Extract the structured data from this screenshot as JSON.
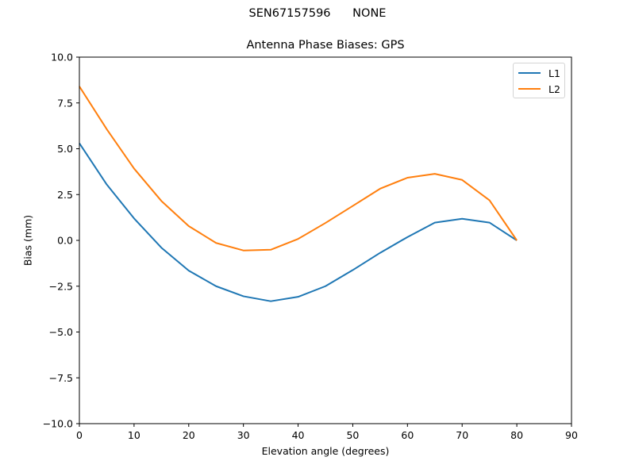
{
  "figure": {
    "suptitle": "SEN67157596      NONE",
    "title": "Antenna Phase Biases: GPS",
    "xlabel": "Elevation angle (degrees)",
    "ylabel": "Bias (mm)"
  },
  "legend": {
    "items": [
      {
        "label": "L1",
        "color": "#1f77b4"
      },
      {
        "label": "L2",
        "color": "#ff7f0e"
      }
    ]
  },
  "chart_data": {
    "type": "line",
    "title": "Antenna Phase Biases: GPS",
    "suptitle": "SEN67157596      NONE",
    "xlabel": "Elevation angle (degrees)",
    "ylabel": "Bias (mm)",
    "xlim": [
      0,
      90
    ],
    "ylim": [
      -10,
      10
    ],
    "xticks": [
      0,
      10,
      20,
      30,
      40,
      50,
      60,
      70,
      80,
      90
    ],
    "yticks": [
      -10.0,
      -7.5,
      -5.0,
      -2.5,
      0.0,
      2.5,
      5.0,
      7.5,
      10.0
    ],
    "ytick_labels": [
      "−10.0",
      "−7.5",
      "−5.0",
      "−2.5",
      "0.0",
      "2.5",
      "5.0",
      "7.5",
      "10.0"
    ],
    "grid": false,
    "legend_position": "upper right",
    "x": [
      0,
      5,
      10,
      15,
      20,
      25,
      30,
      35,
      40,
      45,
      50,
      55,
      60,
      65,
      70,
      75,
      80
    ],
    "series": [
      {
        "name": "L1",
        "color": "#1f77b4",
        "values": [
          5.3,
          3.05,
          1.2,
          -0.4,
          -1.65,
          -2.5,
          -3.05,
          -3.32,
          -3.08,
          -2.5,
          -1.62,
          -0.68,
          0.18,
          0.97,
          1.18,
          0.97,
          0.0
        ]
      },
      {
        "name": "L2",
        "color": "#ff7f0e",
        "values": [
          8.4,
          6.07,
          3.92,
          2.15,
          0.78,
          -0.14,
          -0.55,
          -0.51,
          0.08,
          0.95,
          1.88,
          2.82,
          3.42,
          3.63,
          3.3,
          2.19,
          0.0
        ]
      }
    ]
  }
}
